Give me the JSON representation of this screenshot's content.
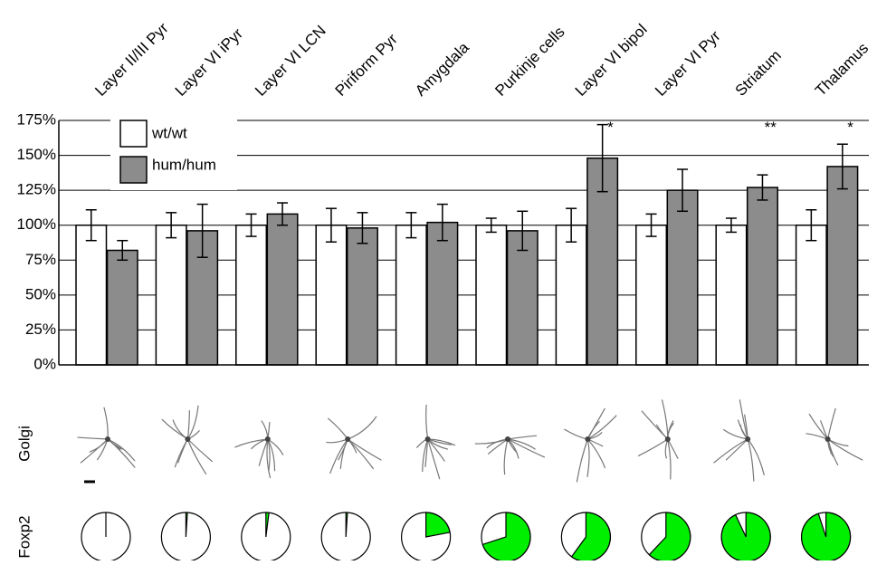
{
  "chart_data": {
    "type": "bar",
    "categories": [
      "Layer II/III Pyr",
      "Layer VI iPyr",
      "Layer VI LCN",
      "Piriform Pyr",
      "Amygdala",
      "Purkinje cells",
      "Layer VI bipol",
      "Layer VI Pyr",
      "Striatum",
      "Thalamus"
    ],
    "series": [
      {
        "name": "wt/wt",
        "color": "#ffffff",
        "values": [
          100,
          100,
          100,
          100,
          100,
          100,
          100,
          100,
          100,
          100
        ],
        "errors": [
          11,
          9,
          8,
          12,
          9,
          5,
          12,
          8,
          5,
          11
        ]
      },
      {
        "name": "hum/hum",
        "color": "#8c8c8c",
        "values": [
          82,
          96,
          108,
          98,
          102,
          96,
          148,
          125,
          127,
          142
        ],
        "errors": [
          7,
          19,
          8,
          11,
          13,
          14,
          24,
          15,
          9,
          16
        ]
      }
    ],
    "significance": [
      null,
      null,
      null,
      null,
      null,
      null,
      "*",
      null,
      "**",
      "*"
    ],
    "ylim": [
      0,
      175
    ],
    "yticks": [
      {
        "value": 0,
        "label": "0%"
      },
      {
        "value": 25,
        "label": "25%"
      },
      {
        "value": 50,
        "label": "50%"
      },
      {
        "value": 75,
        "label": "75%"
      },
      {
        "value": 100,
        "label": "100%"
      },
      {
        "value": 125,
        "label": "125%"
      },
      {
        "value": 150,
        "label": "150%"
      },
      {
        "value": 175,
        "label": "175%"
      }
    ],
    "grid": true,
    "legend": "top-left",
    "golgi_label": "Golgi",
    "foxp2": {
      "label": "Foxp2",
      "color": "#00ee00",
      "values": [
        0,
        1,
        2,
        1,
        22,
        70,
        60,
        62,
        93,
        95
      ]
    }
  }
}
